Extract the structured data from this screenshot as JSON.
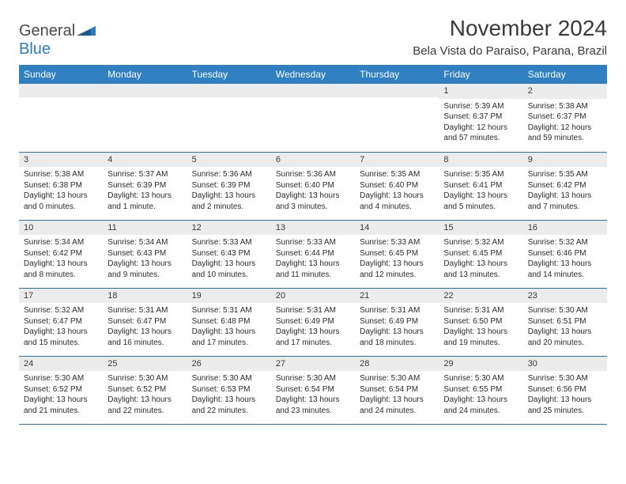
{
  "logo": {
    "part1": "General",
    "part2": "Blue"
  },
  "title": "November 2024",
  "location": "Bela Vista do Paraiso, Parana, Brazil",
  "dayHeaders": [
    "Sunday",
    "Monday",
    "Tuesday",
    "Wednesday",
    "Thursday",
    "Friday",
    "Saturday"
  ],
  "colors": {
    "headerBg": "#2f7fc1",
    "headerFg": "#ffffff",
    "dayNumBg": "#ececec",
    "rowBorder": "#2f6fa8",
    "logoBlue": "#2b7bbf",
    "text": "#2b2b2b"
  },
  "weeks": [
    [
      {
        "n": "",
        "sunrise": "",
        "sunset": "",
        "daylight": ""
      },
      {
        "n": "",
        "sunrise": "",
        "sunset": "",
        "daylight": ""
      },
      {
        "n": "",
        "sunrise": "",
        "sunset": "",
        "daylight": ""
      },
      {
        "n": "",
        "sunrise": "",
        "sunset": "",
        "daylight": ""
      },
      {
        "n": "",
        "sunrise": "",
        "sunset": "",
        "daylight": ""
      },
      {
        "n": "1",
        "sunrise": "Sunrise: 5:39 AM",
        "sunset": "Sunset: 6:37 PM",
        "daylight": "Daylight: 12 hours and 57 minutes."
      },
      {
        "n": "2",
        "sunrise": "Sunrise: 5:38 AM",
        "sunset": "Sunset: 6:37 PM",
        "daylight": "Daylight: 12 hours and 59 minutes."
      }
    ],
    [
      {
        "n": "3",
        "sunrise": "Sunrise: 5:38 AM",
        "sunset": "Sunset: 6:38 PM",
        "daylight": "Daylight: 13 hours and 0 minutes."
      },
      {
        "n": "4",
        "sunrise": "Sunrise: 5:37 AM",
        "sunset": "Sunset: 6:39 PM",
        "daylight": "Daylight: 13 hours and 1 minute."
      },
      {
        "n": "5",
        "sunrise": "Sunrise: 5:36 AM",
        "sunset": "Sunset: 6:39 PM",
        "daylight": "Daylight: 13 hours and 2 minutes."
      },
      {
        "n": "6",
        "sunrise": "Sunrise: 5:36 AM",
        "sunset": "Sunset: 6:40 PM",
        "daylight": "Daylight: 13 hours and 3 minutes."
      },
      {
        "n": "7",
        "sunrise": "Sunrise: 5:35 AM",
        "sunset": "Sunset: 6:40 PM",
        "daylight": "Daylight: 13 hours and 4 minutes."
      },
      {
        "n": "8",
        "sunrise": "Sunrise: 5:35 AM",
        "sunset": "Sunset: 6:41 PM",
        "daylight": "Daylight: 13 hours and 5 minutes."
      },
      {
        "n": "9",
        "sunrise": "Sunrise: 5:35 AM",
        "sunset": "Sunset: 6:42 PM",
        "daylight": "Daylight: 13 hours and 7 minutes."
      }
    ],
    [
      {
        "n": "10",
        "sunrise": "Sunrise: 5:34 AM",
        "sunset": "Sunset: 6:42 PM",
        "daylight": "Daylight: 13 hours and 8 minutes."
      },
      {
        "n": "11",
        "sunrise": "Sunrise: 5:34 AM",
        "sunset": "Sunset: 6:43 PM",
        "daylight": "Daylight: 13 hours and 9 minutes."
      },
      {
        "n": "12",
        "sunrise": "Sunrise: 5:33 AM",
        "sunset": "Sunset: 6:43 PM",
        "daylight": "Daylight: 13 hours and 10 minutes."
      },
      {
        "n": "13",
        "sunrise": "Sunrise: 5:33 AM",
        "sunset": "Sunset: 6:44 PM",
        "daylight": "Daylight: 13 hours and 11 minutes."
      },
      {
        "n": "14",
        "sunrise": "Sunrise: 5:33 AM",
        "sunset": "Sunset: 6:45 PM",
        "daylight": "Daylight: 13 hours and 12 minutes."
      },
      {
        "n": "15",
        "sunrise": "Sunrise: 5:32 AM",
        "sunset": "Sunset: 6:45 PM",
        "daylight": "Daylight: 13 hours and 13 minutes."
      },
      {
        "n": "16",
        "sunrise": "Sunrise: 5:32 AM",
        "sunset": "Sunset: 6:46 PM",
        "daylight": "Daylight: 13 hours and 14 minutes."
      }
    ],
    [
      {
        "n": "17",
        "sunrise": "Sunrise: 5:32 AM",
        "sunset": "Sunset: 6:47 PM",
        "daylight": "Daylight: 13 hours and 15 minutes."
      },
      {
        "n": "18",
        "sunrise": "Sunrise: 5:31 AM",
        "sunset": "Sunset: 6:47 PM",
        "daylight": "Daylight: 13 hours and 16 minutes."
      },
      {
        "n": "19",
        "sunrise": "Sunrise: 5:31 AM",
        "sunset": "Sunset: 6:48 PM",
        "daylight": "Daylight: 13 hours and 17 minutes."
      },
      {
        "n": "20",
        "sunrise": "Sunrise: 5:31 AM",
        "sunset": "Sunset: 6:49 PM",
        "daylight": "Daylight: 13 hours and 17 minutes."
      },
      {
        "n": "21",
        "sunrise": "Sunrise: 5:31 AM",
        "sunset": "Sunset: 6:49 PM",
        "daylight": "Daylight: 13 hours and 18 minutes."
      },
      {
        "n": "22",
        "sunrise": "Sunrise: 5:31 AM",
        "sunset": "Sunset: 6:50 PM",
        "daylight": "Daylight: 13 hours and 19 minutes."
      },
      {
        "n": "23",
        "sunrise": "Sunrise: 5:30 AM",
        "sunset": "Sunset: 6:51 PM",
        "daylight": "Daylight: 13 hours and 20 minutes."
      }
    ],
    [
      {
        "n": "24",
        "sunrise": "Sunrise: 5:30 AM",
        "sunset": "Sunset: 6:52 PM",
        "daylight": "Daylight: 13 hours and 21 minutes."
      },
      {
        "n": "25",
        "sunrise": "Sunrise: 5:30 AM",
        "sunset": "Sunset: 6:52 PM",
        "daylight": "Daylight: 13 hours and 22 minutes."
      },
      {
        "n": "26",
        "sunrise": "Sunrise: 5:30 AM",
        "sunset": "Sunset: 6:53 PM",
        "daylight": "Daylight: 13 hours and 22 minutes."
      },
      {
        "n": "27",
        "sunrise": "Sunrise: 5:30 AM",
        "sunset": "Sunset: 6:54 PM",
        "daylight": "Daylight: 13 hours and 23 minutes."
      },
      {
        "n": "28",
        "sunrise": "Sunrise: 5:30 AM",
        "sunset": "Sunset: 6:54 PM",
        "daylight": "Daylight: 13 hours and 24 minutes."
      },
      {
        "n": "29",
        "sunrise": "Sunrise: 5:30 AM",
        "sunset": "Sunset: 6:55 PM",
        "daylight": "Daylight: 13 hours and 24 minutes."
      },
      {
        "n": "30",
        "sunrise": "Sunrise: 5:30 AM",
        "sunset": "Sunset: 6:56 PM",
        "daylight": "Daylight: 13 hours and 25 minutes."
      }
    ]
  ]
}
